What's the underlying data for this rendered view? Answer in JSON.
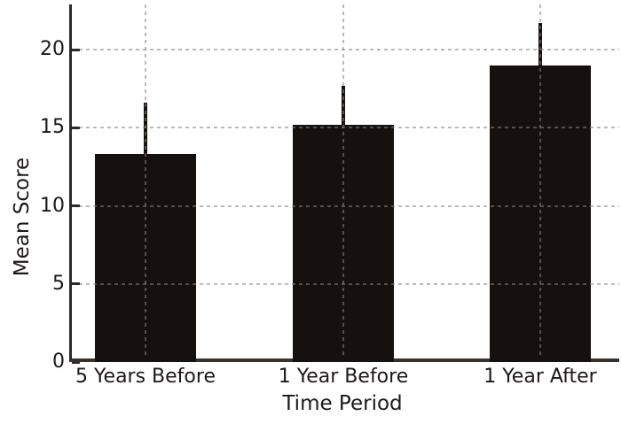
{
  "figure": {
    "background_color": "#ffffff"
  },
  "chart_data": {
    "type": "bar",
    "categories": [
      "5 Years Before",
      "1 Year Before",
      "1 Year After"
    ],
    "values": [
      13.3,
      15.2,
      19.0
    ],
    "error_plus": [
      3.3,
      2.5,
      2.7
    ],
    "xlabel": "Time Period",
    "ylabel": "Mean Score",
    "yticks": [
      0,
      5,
      10,
      15,
      20
    ],
    "ylim": [
      0,
      22.9
    ],
    "bar_color": "#16110f",
    "error_bar_color": "#16110f",
    "axis_color": "#2e2a29",
    "text_color": "#1c1817",
    "grid_color": "rgba(138,130,124,0.55)",
    "grid": true,
    "legend_position": "none"
  }
}
